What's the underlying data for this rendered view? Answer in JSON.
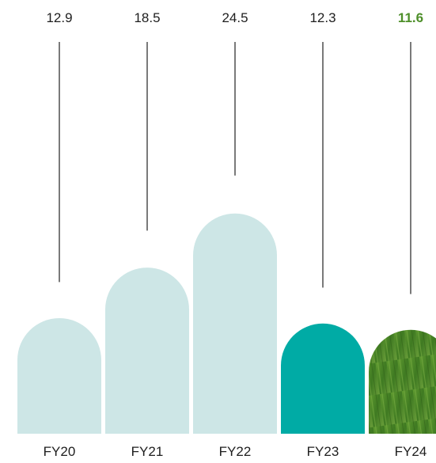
{
  "chart_data": {
    "type": "bar",
    "title": "",
    "xlabel": "",
    "ylabel": "",
    "categories": [
      "FY20",
      "FY21",
      "FY22",
      "FY23",
      "FY24"
    ],
    "values": [
      12.9,
      18.5,
      24.5,
      12.3,
      11.6
    ],
    "value_labels": [
      "12.9",
      "18.5",
      "24.5",
      "12.3",
      "11.6"
    ],
    "highlight_index": 4,
    "grid": false,
    "legend": "none",
    "colors": {
      "past_bar": "#cde6e6",
      "current_bar": "#00aba5",
      "highlight_bar": "#3f7a22",
      "highlight_bar_light": "#6fa33c",
      "highlight_label": "#4e8f2a",
      "leader_line": "#333333",
      "marker": "#ffffff"
    }
  }
}
